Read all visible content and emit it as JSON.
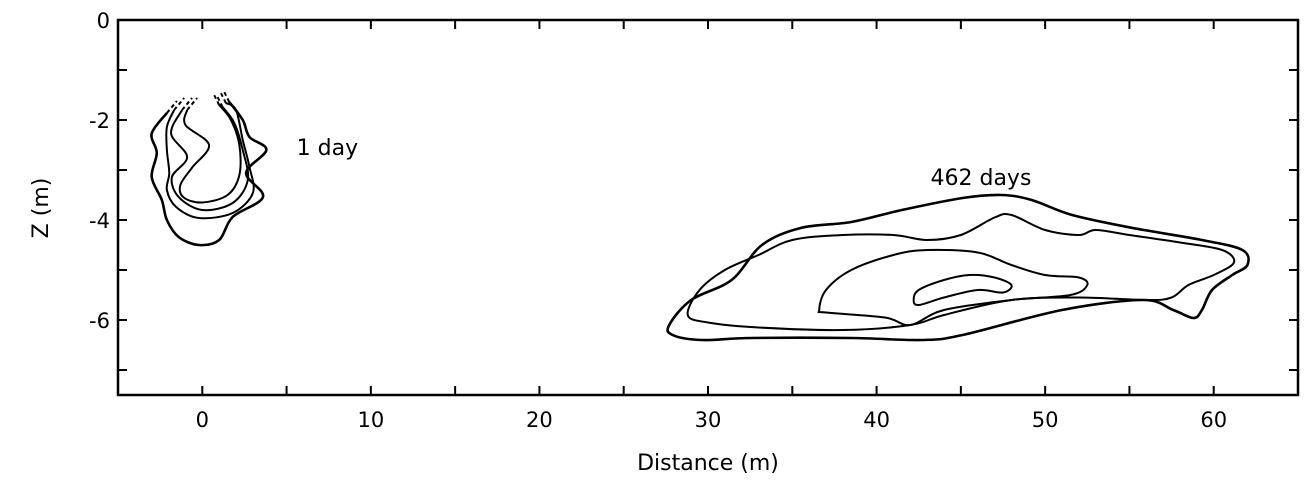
{
  "chart_data": {
    "type": "contour",
    "xlabel": "Distance (m)",
    "ylabel": "Z (m)",
    "xlim": [
      -5,
      65
    ],
    "ylim": [
      -7.5,
      0
    ],
    "x_ticks": [
      0,
      10,
      20,
      30,
      40,
      50,
      60
    ],
    "x_minor_step": 5,
    "y_ticks": [
      0,
      -2,
      -4,
      -6
    ],
    "y_minor_step": 1,
    "grid": false,
    "line_color": "#000000",
    "annotations": [
      {
        "text": "1 day",
        "x": 5.6,
        "y": -2.7
      },
      {
        "text": "462 days",
        "x": 43.2,
        "y": -3.3
      }
    ],
    "plumes": [
      {
        "label": "1 day",
        "open_top_dashed": true,
        "contours": [
          [
            [
              -2.1,
              -1.86
            ],
            [
              -3.0,
              -2.27
            ],
            [
              -2.7,
              -2.66
            ],
            [
              -3.0,
              -3.14
            ],
            [
              -2.4,
              -3.6
            ],
            [
              -2.1,
              -4.0
            ],
            [
              -1.4,
              -4.34
            ],
            [
              -0.2,
              -4.5
            ],
            [
              1.0,
              -4.4
            ],
            [
              1.8,
              -3.94
            ],
            [
              3.6,
              -3.54
            ],
            [
              2.6,
              -3.06
            ],
            [
              3.8,
              -2.6
            ],
            [
              2.8,
              -2.34
            ],
            [
              2.4,
              -2.0
            ],
            [
              1.6,
              -1.64
            ]
          ],
          [
            [
              -1.67,
              -1.8
            ],
            [
              -2.1,
              -2.14
            ],
            [
              -2.1,
              -2.6
            ],
            [
              -1.96,
              -3.06
            ],
            [
              -2.1,
              -3.4
            ],
            [
              -1.55,
              -3.74
            ],
            [
              -0.2,
              -3.96
            ],
            [
              1.8,
              -3.86
            ],
            [
              3.0,
              -3.46
            ],
            [
              2.8,
              -2.94
            ],
            [
              2.4,
              -2.4
            ],
            [
              2.0,
              -1.8
            ],
            [
              1.4,
              -1.66
            ]
          ],
          [
            [
              -1.2,
              -1.8
            ],
            [
              -1.85,
              -2.27
            ],
            [
              -0.9,
              -2.74
            ],
            [
              -1.8,
              -3.14
            ],
            [
              -1.4,
              -3.54
            ],
            [
              0.0,
              -3.8
            ],
            [
              1.8,
              -3.66
            ],
            [
              2.7,
              -3.2
            ],
            [
              2.4,
              -2.6
            ],
            [
              1.9,
              -2.06
            ],
            [
              1.2,
              -1.74
            ]
          ],
          [
            [
              -0.9,
              -1.8
            ],
            [
              -1.0,
              -2.1
            ],
            [
              0.4,
              -2.5
            ],
            [
              -0.6,
              -2.95
            ],
            [
              -1.3,
              -3.3
            ],
            [
              -1.1,
              -3.55
            ],
            [
              0.0,
              -3.65
            ],
            [
              1.5,
              -3.5
            ],
            [
              2.2,
              -3.1
            ],
            [
              2.2,
              -2.5
            ],
            [
              1.7,
              -2.0
            ],
            [
              1.0,
              -1.7
            ]
          ]
        ]
      },
      {
        "label": "462 days",
        "open_top_dashed": false,
        "contours": [
          [
            [
              27.7,
              -6.1
            ],
            [
              29.0,
              -5.6
            ],
            [
              31.4,
              -5.2
            ],
            [
              33.2,
              -4.5
            ],
            [
              35.5,
              -4.16
            ],
            [
              38.5,
              -4.04
            ],
            [
              41.5,
              -3.8
            ],
            [
              45.1,
              -3.56
            ],
            [
              47.4,
              -3.5
            ],
            [
              49.2,
              -3.6
            ],
            [
              51.6,
              -3.9
            ],
            [
              55.2,
              -4.16
            ],
            [
              59.3,
              -4.4
            ],
            [
              61.7,
              -4.6
            ],
            [
              62.0,
              -4.9
            ],
            [
              61.1,
              -5.1
            ],
            [
              59.9,
              -5.4
            ],
            [
              59.3,
              -5.8
            ],
            [
              58.8,
              -5.96
            ],
            [
              57.6,
              -5.8
            ],
            [
              55.8,
              -5.6
            ],
            [
              51.0,
              -5.8
            ],
            [
              45.1,
              -6.3
            ],
            [
              42.7,
              -6.4
            ],
            [
              38.5,
              -6.36
            ],
            [
              32.6,
              -6.36
            ],
            [
              29.6,
              -6.4
            ],
            [
              27.9,
              -6.3
            ]
          ],
          [
            [
              28.8,
              -5.9
            ],
            [
              29.5,
              -5.4
            ],
            [
              31,
              -5.0
            ],
            [
              33,
              -4.7
            ],
            [
              35,
              -4.4
            ],
            [
              38,
              -4.3
            ],
            [
              41,
              -4.3
            ],
            [
              43,
              -4.4
            ],
            [
              45,
              -4.3
            ],
            [
              47,
              -3.95
            ],
            [
              48,
              -3.9
            ],
            [
              50,
              -4.2
            ],
            [
              52,
              -4.3
            ],
            [
              53,
              -4.2
            ],
            [
              55,
              -4.3
            ],
            [
              58,
              -4.45
            ],
            [
              60.5,
              -4.6
            ],
            [
              61.2,
              -4.85
            ],
            [
              60,
              -5.1
            ],
            [
              58.5,
              -5.3
            ],
            [
              57.5,
              -5.55
            ],
            [
              56,
              -5.6
            ],
            [
              52,
              -5.55
            ],
            [
              48,
              -5.6
            ],
            [
              44,
              -5.9
            ],
            [
              42,
              -6.1
            ],
            [
              38,
              -6.2
            ],
            [
              33,
              -6.15
            ],
            [
              30,
              -6.05
            ]
          ],
          [
            [
              36.6,
              -5.8
            ],
            [
              37,
              -5.4
            ],
            [
              38.5,
              -5.0
            ],
            [
              41,
              -4.7
            ],
            [
              43,
              -4.6
            ],
            [
              46,
              -4.65
            ],
            [
              48,
              -4.9
            ],
            [
              50,
              -5.1
            ],
            [
              52,
              -5.15
            ],
            [
              52.5,
              -5.3
            ],
            [
              51.5,
              -5.5
            ],
            [
              48,
              -5.6
            ],
            [
              44,
              -5.8
            ],
            [
              42,
              -6.1
            ],
            [
              40.5,
              -5.95
            ],
            [
              37,
              -5.85
            ]
          ],
          [
            [
              42.2,
              -5.6
            ],
            [
              42.5,
              -5.4
            ],
            [
              44,
              -5.2
            ],
            [
              45.5,
              -5.1
            ],
            [
              47,
              -5.15
            ],
            [
              48,
              -5.3
            ],
            [
              47.5,
              -5.45
            ],
            [
              46,
              -5.4
            ],
            [
              44,
              -5.55
            ],
            [
              42.5,
              -5.7
            ]
          ]
        ]
      }
    ]
  }
}
